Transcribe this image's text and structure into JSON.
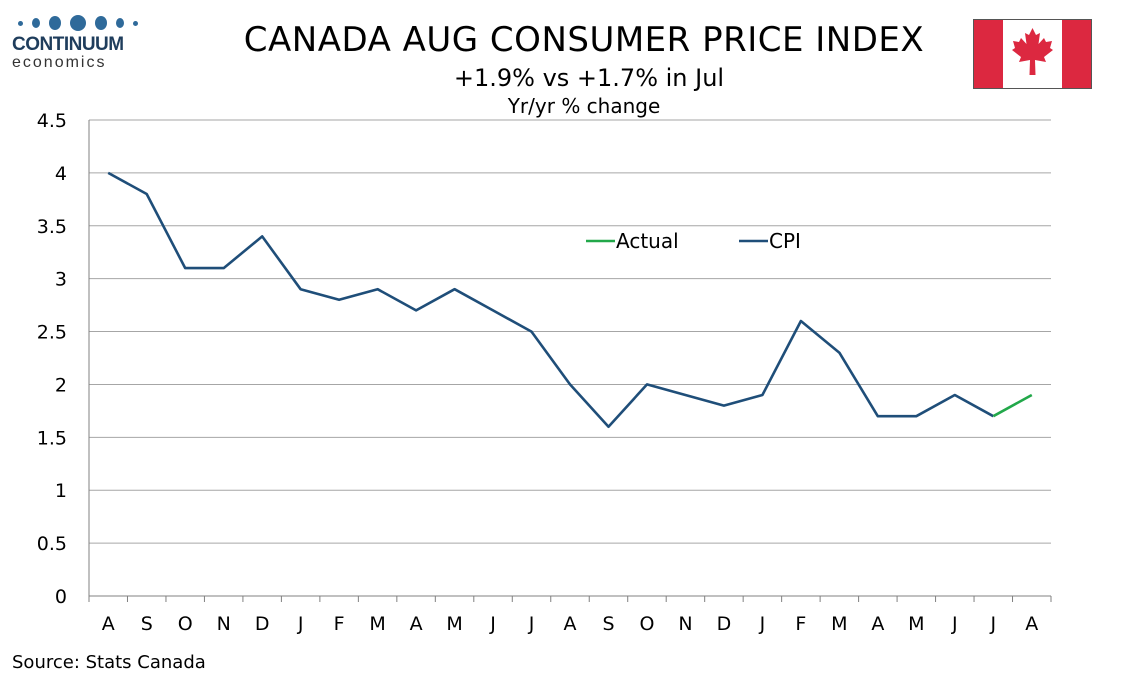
{
  "logo": {
    "name": "CONTINUUM",
    "sub": "economics"
  },
  "header": {
    "title": "CANADA AUG CONSUMER PRICE INDEX",
    "subtitle": "+1.9% vs +1.7% in Jul",
    "note": "Yr/yr % change"
  },
  "source": "Source: Stats Canada",
  "colors": {
    "cpi": "#1f4e79",
    "actual": "#22a84a",
    "grid": "#a6a6a6",
    "flag_red": "#dc2840"
  },
  "chart_data": {
    "type": "line",
    "categories": [
      "A",
      "S",
      "O",
      "N",
      "D",
      "J",
      "F",
      "M",
      "A",
      "M",
      "J",
      "J",
      "A",
      "S",
      "O",
      "N",
      "D",
      "J",
      "F",
      "M",
      "A",
      "M",
      "J",
      "J",
      "A"
    ],
    "ylim": [
      0,
      4.5
    ],
    "yticks": [
      "0",
      "0.5",
      "1",
      "1.5",
      "2",
      "2.5",
      "3",
      "3.5",
      "4",
      "4.5"
    ],
    "ytick_values": [
      0,
      0.5,
      1,
      1.5,
      2,
      2.5,
      3,
      3.5,
      4,
      4.5
    ],
    "grid": true,
    "legend_position": "top-center",
    "series": [
      {
        "name": "CPI",
        "color": "#1f4e79",
        "values": [
          4.0,
          3.8,
          3.1,
          3.1,
          3.4,
          2.9,
          2.8,
          2.9,
          2.7,
          2.9,
          2.7,
          2.5,
          2.0,
          1.6,
          2.0,
          1.9,
          1.8,
          1.9,
          2.6,
          2.3,
          1.7,
          1.7,
          1.9,
          1.7,
          null
        ]
      },
      {
        "name": "Actual",
        "color": "#22a84a",
        "values": [
          null,
          null,
          null,
          null,
          null,
          null,
          null,
          null,
          null,
          null,
          null,
          null,
          null,
          null,
          null,
          null,
          null,
          null,
          null,
          null,
          null,
          null,
          null,
          1.7,
          1.9
        ]
      }
    ],
    "legend": [
      {
        "name": "Actual",
        "color": "#22a84a"
      },
      {
        "name": "CPI",
        "color": "#1f4e79"
      }
    ]
  }
}
